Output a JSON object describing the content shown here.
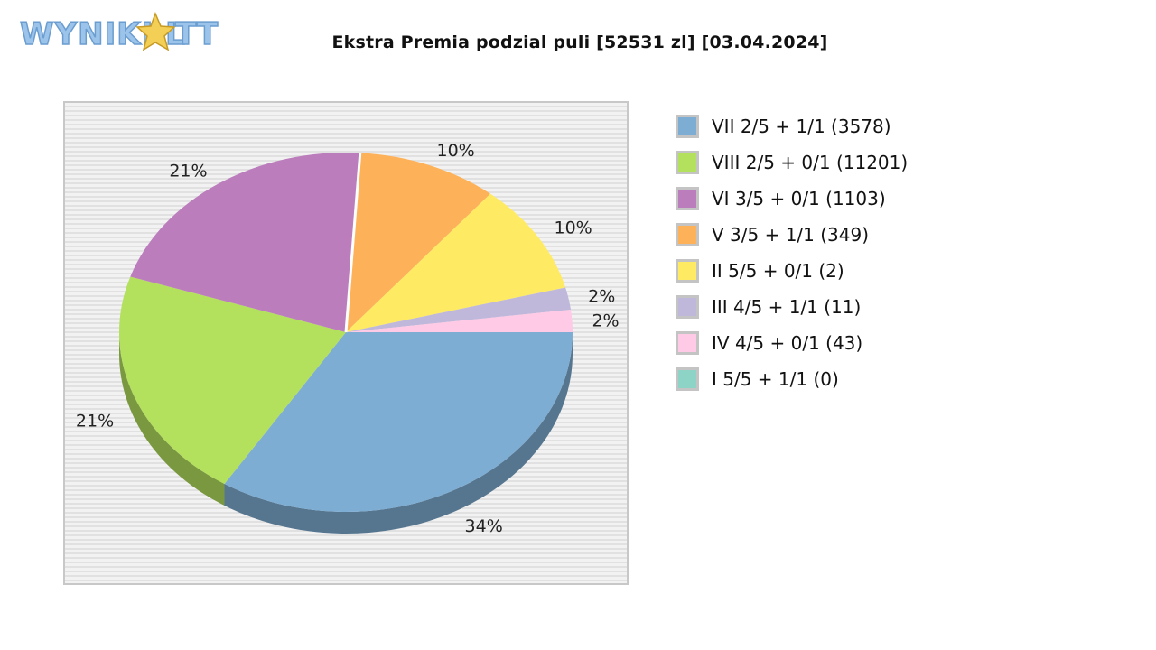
{
  "logo": {
    "text": "WYNIKI LOTTO"
  },
  "chart_data": {
    "type": "pie",
    "title": "Ekstra Premia podzial puli [52531 zl] [03.04.2024]",
    "legend_position": "right",
    "slices": [
      {
        "name": "VII 2/5 + 1/1 (3578)",
        "value": 34,
        "label": "34%",
        "color": "#7eadd4"
      },
      {
        "name": "VIII 2/5 + 0/1 (11201)",
        "value": 21,
        "label": "21%",
        "color": "#b3e05d"
      },
      {
        "name": "VI 3/5 + 0/1 (1103)",
        "value": 21,
        "label": "21%",
        "color": "#bb7dbc"
      },
      {
        "name": "V 3/5 + 1/1 (349)",
        "value": 10,
        "label": "10%",
        "color": "#fdb25a"
      },
      {
        "name": "II 5/5 + 0/1 (2)",
        "value": 10,
        "label": "10%",
        "color": "#feeb63"
      },
      {
        "name": "III 4/5 + 1/1 (11)",
        "value": 2,
        "label": "2%",
        "color": "#bfb8da"
      },
      {
        "name": "IV 4/5 + 0/1 (43)",
        "value": 2,
        "label": "2%",
        "color": "#fecae5"
      },
      {
        "name": "I 5/5 + 1/1 (0)",
        "value": 0,
        "label": "",
        "color": "#8dd3c6"
      }
    ]
  }
}
